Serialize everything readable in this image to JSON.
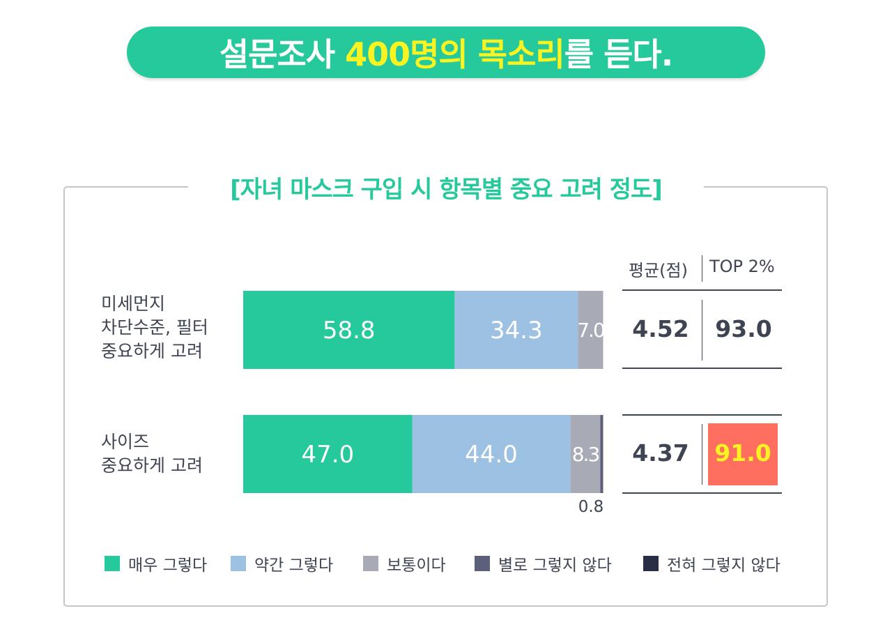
{
  "banner": {
    "part1": "설문조사 ",
    "highlight1": "400명의 목소리",
    "part2": "를 듣다."
  },
  "frame_title": "[자녀 마스크 구입 시 항목별 중요 고려 정도]",
  "colors": {
    "very": "#26c99b",
    "somewhat": "#9dc1e2",
    "neutral": "#a8aab6",
    "not_really": "#5c607a",
    "not_at_all": "#2a2e44",
    "highlight": "#ff6f5f",
    "highlight_text": "#f8f321"
  },
  "table": {
    "header_avg": "평균(점)",
    "header_top2": "TOP 2%",
    "rows": [
      {
        "avg": "4.52",
        "top2": "93.0"
      },
      {
        "avg": "4.37",
        "top2": "91.0"
      }
    ]
  },
  "chart_data": {
    "type": "bar",
    "orientation": "horizontal",
    "stacked": true,
    "categories": [
      [
        "미세먼지",
        "차단수준, 필터",
        "중요하게 고려"
      ],
      [
        "사이즈",
        "중요하게 고려"
      ]
    ],
    "series": [
      {
        "name": "매우 그렇다",
        "values": [
          58.8,
          47.0
        ],
        "labels": [
          "58.8",
          "47.0"
        ]
      },
      {
        "name": "약간 그렇다",
        "values": [
          34.3,
          44.0
        ],
        "labels": [
          "34.3",
          "44.0"
        ]
      },
      {
        "name": "보통이다",
        "values": [
          7.0,
          8.3
        ],
        "labels": [
          "7.0",
          "8.3"
        ]
      },
      {
        "name": "별로 그렇지 않다",
        "values": [
          0,
          0.8
        ],
        "labels": [
          "",
          "0.8"
        ]
      },
      {
        "name": "전혀 그렇지 않다",
        "values": [
          0,
          0
        ],
        "labels": [
          "",
          ""
        ]
      }
    ],
    "xlim": [
      0,
      100
    ],
    "legend": "bottom"
  }
}
